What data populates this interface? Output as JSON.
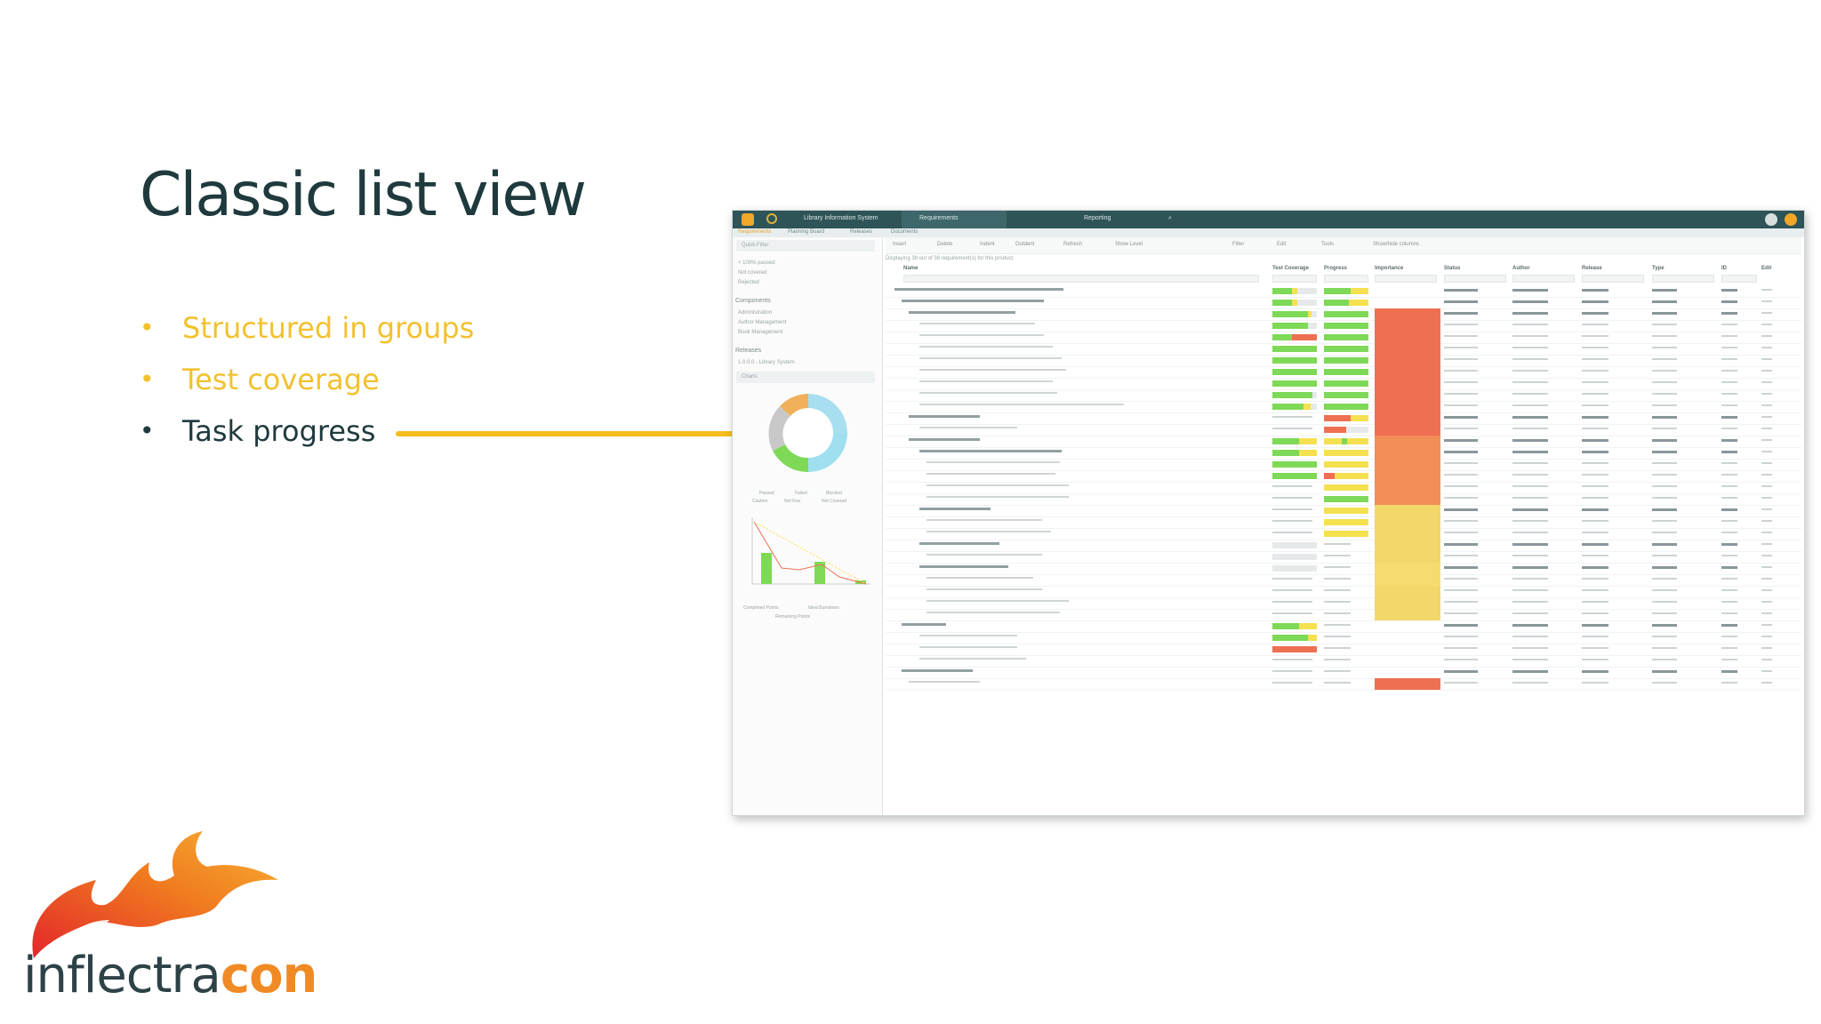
{
  "slide": {
    "title": "Classic list view",
    "bullets": [
      {
        "text": "Structured in groups",
        "color": "#f2c12e"
      },
      {
        "text": "Test coverage",
        "color": "#f2c12e"
      },
      {
        "text": "Task progress",
        "color": "#1f3a3d"
      }
    ],
    "bullet_glyph": "•"
  },
  "logo": {
    "prefix": "inflectra",
    "suffix": "con",
    "prefix_color": "#2d4246",
    "suffix_color": "#f08a24"
  },
  "app": {
    "product": "Library Information System",
    "tab_requirements": "Requirements",
    "tab_reporting": "Reporting",
    "subnav": [
      "Requirements",
      "Planning Board",
      "Releases",
      "Documents"
    ],
    "sidebar": {
      "quick_filter": "Quick Filter",
      "filters": [
        "< 100% passed",
        "Not covered",
        "Rejected"
      ],
      "components_label": "Components",
      "components": [
        "Administration",
        "Author Management",
        "Book Management"
      ],
      "releases_label": "Releases",
      "release_value": "1.0.0.0 - Library System",
      "charts_label": "Charts",
      "chart_legend_1": [
        "Passed",
        "Failed",
        "Blocked",
        "Caution",
        "Not Run",
        "Not Covered"
      ],
      "chart_legend_2": [
        "Completed Points",
        "Ideal Burndown",
        "Remaining Points"
      ]
    },
    "toolbar": [
      "Insert",
      "Delete",
      "Indent",
      "Outdent",
      "Refresh",
      "Show Level",
      "Filter",
      "Edit",
      "Tools",
      "Show/hide columns"
    ],
    "info": "Displaying 38 out of 38 requirement(s) for this product.",
    "columns": [
      "Name",
      "Test Coverage",
      "Progress",
      "Importance",
      "Status",
      "Author",
      "Release",
      "Type",
      "ID",
      "Edit"
    ],
    "colors": {
      "passed": "#7ed957",
      "failed": "#ef6f52",
      "caution": "#f5e04f",
      "notrun": "#e6e9ea"
    }
  }
}
